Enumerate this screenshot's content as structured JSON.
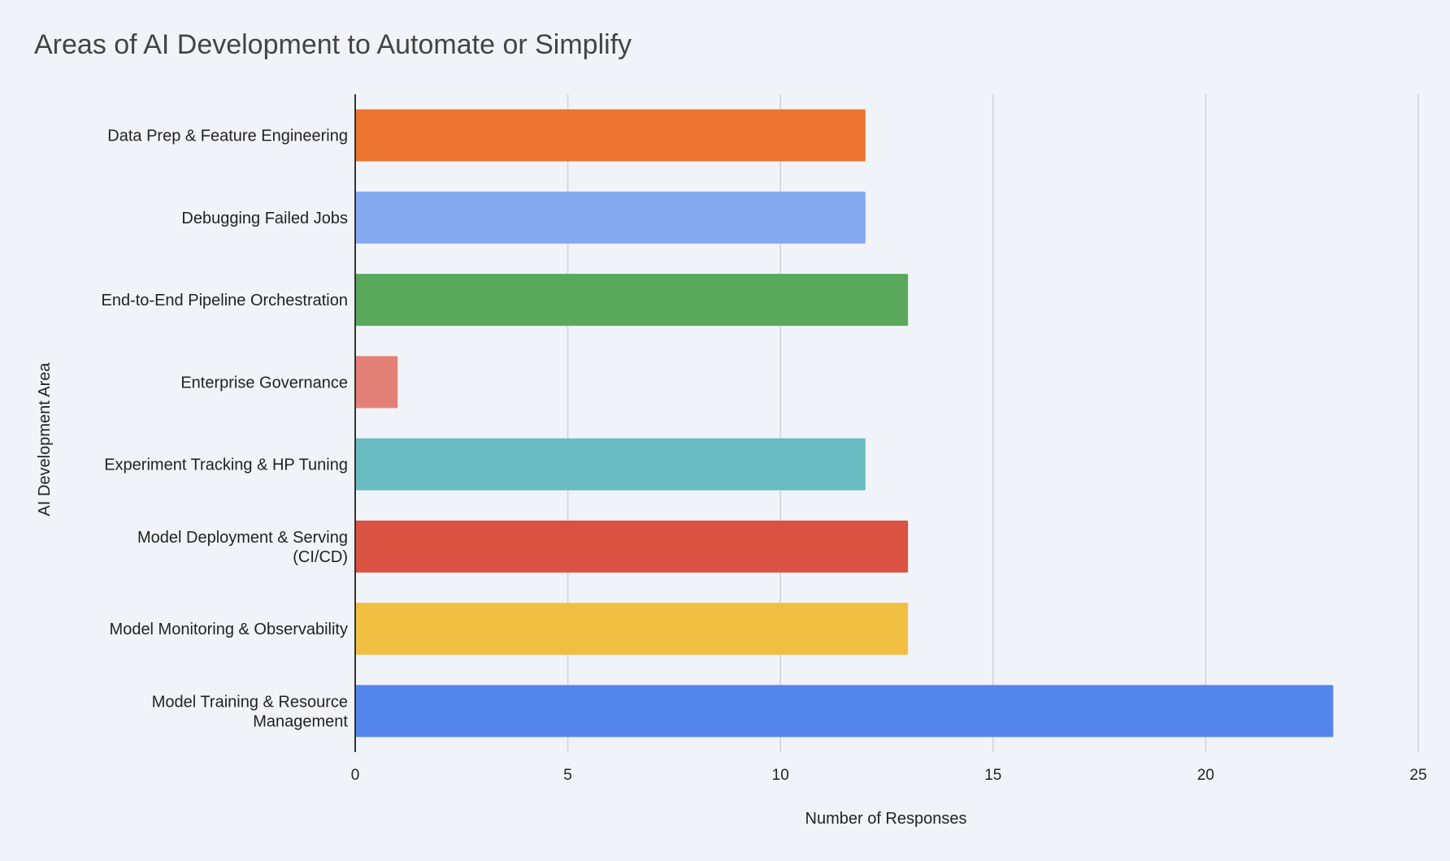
{
  "chart_data": {
    "type": "bar",
    "orientation": "horizontal",
    "title": "Areas of AI Development to Automate or Simplify",
    "xlabel": "Number of Responses",
    "ylabel": "AI Development Area",
    "xlim": [
      0,
      25
    ],
    "xticks": [
      0,
      5,
      10,
      15,
      20,
      25
    ],
    "grid": true,
    "legend": "none",
    "categories": [
      [
        "Data Prep & Feature Engineering"
      ],
      [
        "Debugging Failed Jobs"
      ],
      [
        "End-to-End Pipeline Orchestration"
      ],
      [
        "Enterprise Governance"
      ],
      [
        "Experiment Tracking & HP Tuning"
      ],
      [
        "Model Deployment & Serving",
        "(CI/CD)"
      ],
      [
        "Model Monitoring & Observability"
      ],
      [
        "Model Training & Resource",
        "Management"
      ]
    ],
    "values": [
      12,
      12,
      13,
      1,
      12,
      13,
      13,
      23
    ],
    "colors": [
      "#eb7530",
      "#84a9f0",
      "#59a85c",
      "#e38178",
      "#6abcc3",
      "#d95242",
      "#f0bf42",
      "#5485ec"
    ]
  }
}
